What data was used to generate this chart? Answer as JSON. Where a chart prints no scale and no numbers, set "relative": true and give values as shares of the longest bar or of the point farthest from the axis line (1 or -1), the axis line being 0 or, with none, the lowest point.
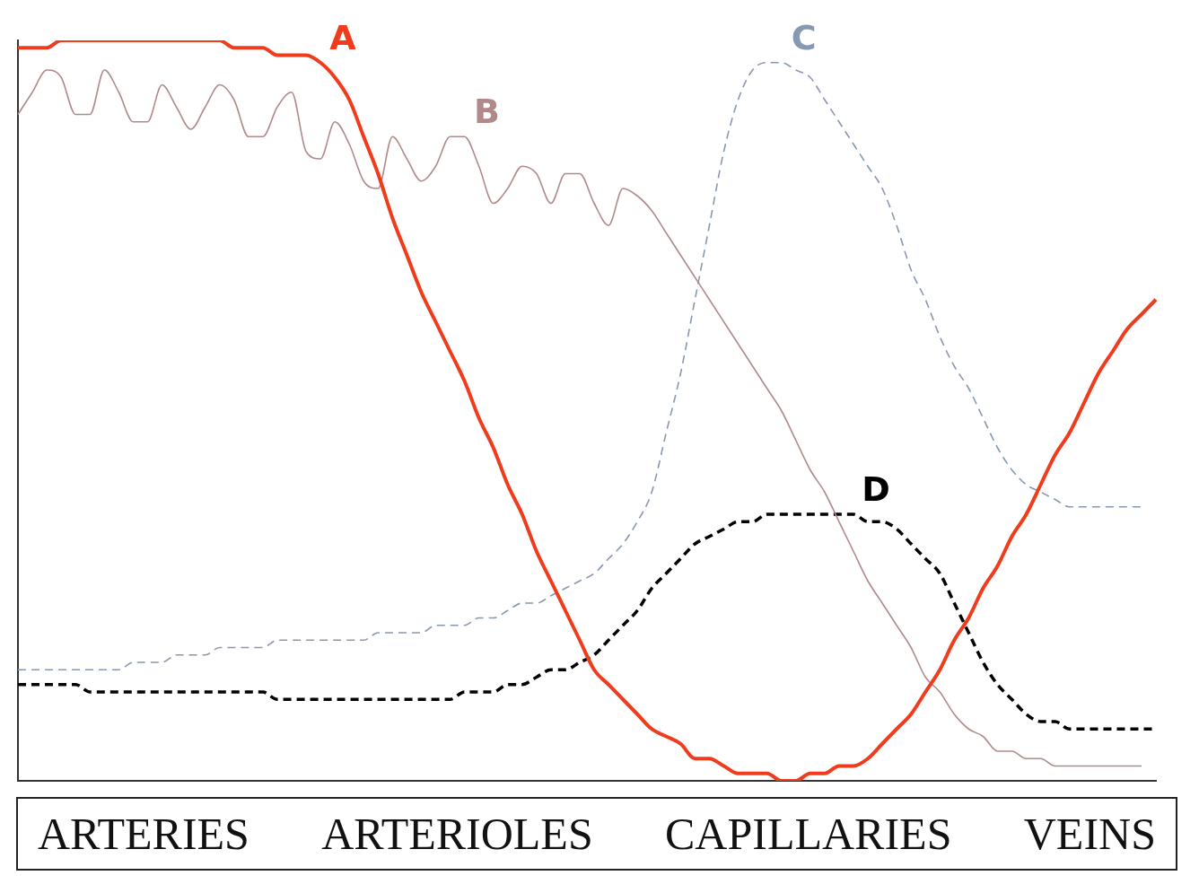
{
  "chart_data": {
    "type": "line",
    "relative": true,
    "legend": false,
    "grid": false,
    "categories": [
      null,
      null,
      null,
      null,
      null,
      null,
      null,
      null,
      null,
      null,
      null,
      null,
      null,
      null,
      null,
      null,
      null,
      null,
      null,
      null,
      null,
      null,
      null,
      null,
      null,
      null,
      null,
      null,
      null,
      null,
      null,
      null,
      null,
      null,
      null,
      null,
      null,
      null,
      null,
      null,
      null,
      null,
      null,
      null,
      null,
      null,
      null,
      null,
      null,
      null,
      null,
      null,
      null,
      null,
      null,
      null,
      null,
      null,
      null,
      null,
      null,
      null,
      null,
      null,
      null,
      null,
      null,
      null,
      null,
      null,
      null,
      null,
      null,
      null,
      null,
      null,
      null,
      null,
      null,
      null
    ],
    "annotations": [
      "ARTERIES",
      "ARTERIOLES",
      "CAPILLARIES",
      "VEINS"
    ],
    "series": [
      {
        "name": "A",
        "color": "#f03c1c",
        "line_style": "solid",
        "values": [
          0.99,
          0.99,
          0.99,
          1.0,
          1.0,
          1.0,
          1.0,
          1.0,
          1.0,
          1.0,
          1.0,
          1.0,
          1.0,
          1.0,
          1.0,
          0.99,
          0.99,
          0.99,
          0.98,
          0.98,
          0.98,
          0.97,
          0.95,
          0.92,
          0.87,
          0.82,
          0.76,
          0.71,
          0.66,
          0.62,
          0.58,
          0.54,
          0.49,
          0.45,
          0.4,
          0.36,
          0.31,
          0.27,
          0.23,
          0.19,
          0.15,
          0.13,
          0.11,
          0.09,
          0.07,
          0.06,
          0.05,
          0.03,
          0.03,
          0.02,
          0.01,
          0.01,
          0.01,
          0.0,
          0.0,
          0.01,
          0.01,
          0.02,
          0.02,
          0.03,
          0.05,
          0.07,
          0.09,
          0.12,
          0.15,
          0.19,
          0.22,
          0.26,
          0.29,
          0.33,
          0.36,
          0.4,
          0.44,
          0.47,
          0.51,
          0.55,
          0.58,
          0.61,
          0.63,
          0.65
        ]
      },
      {
        "name": "B",
        "color": "#b08a8a",
        "line_style": "solid",
        "values": [
          0.9,
          0.93,
          0.96,
          0.95,
          0.9,
          0.9,
          0.96,
          0.93,
          0.89,
          0.89,
          0.94,
          0.91,
          0.88,
          0.91,
          0.94,
          0.92,
          0.87,
          0.87,
          0.91,
          0.93,
          0.85,
          0.84,
          0.89,
          0.86,
          0.81,
          0.8,
          0.87,
          0.84,
          0.81,
          0.83,
          0.87,
          0.87,
          0.83,
          0.78,
          0.8,
          0.83,
          0.82,
          0.78,
          0.82,
          0.82,
          0.78,
          0.75,
          0.8,
          0.79,
          0.77,
          0.74,
          0.71,
          0.68,
          0.65,
          0.62,
          0.59,
          0.56,
          0.53,
          0.5,
          0.46,
          0.42,
          0.39,
          0.35,
          0.31,
          0.27,
          0.24,
          0.21,
          0.18,
          0.14,
          0.12,
          0.09,
          0.07,
          0.06,
          0.04,
          0.04,
          0.03,
          0.03,
          0.02,
          0.02,
          0.02,
          0.02,
          0.02,
          0.02,
          0.02,
          null
        ]
      },
      {
        "name": "C",
        "color": "#8898b0",
        "line_style": "dashed",
        "values": [
          0.15,
          0.15,
          0.15,
          0.15,
          0.15,
          0.15,
          0.15,
          0.15,
          0.16,
          0.16,
          0.16,
          0.17,
          0.17,
          0.17,
          0.18,
          0.18,
          0.18,
          0.18,
          0.19,
          0.19,
          0.19,
          0.19,
          0.19,
          0.19,
          0.19,
          0.2,
          0.2,
          0.2,
          0.2,
          0.21,
          0.21,
          0.21,
          0.22,
          0.22,
          0.23,
          0.24,
          0.24,
          0.25,
          0.26,
          0.27,
          0.28,
          0.3,
          0.32,
          0.35,
          0.39,
          0.47,
          0.55,
          0.65,
          0.75,
          0.85,
          0.92,
          0.96,
          0.97,
          0.97,
          0.96,
          0.95,
          0.92,
          0.89,
          0.86,
          0.83,
          0.8,
          0.75,
          0.69,
          0.65,
          0.6,
          0.56,
          0.53,
          0.49,
          0.45,
          0.42,
          0.4,
          0.39,
          0.38,
          0.37,
          0.37,
          0.37,
          0.37,
          0.37,
          0.37,
          null
        ]
      },
      {
        "name": "D",
        "color": "#000000",
        "line_style": "dashed",
        "values": [
          0.13,
          0.13,
          0.13,
          0.13,
          0.13,
          0.12,
          0.12,
          0.12,
          0.12,
          0.12,
          0.12,
          0.12,
          0.12,
          0.12,
          0.12,
          0.12,
          0.12,
          0.12,
          0.11,
          0.11,
          0.11,
          0.11,
          0.11,
          0.11,
          0.11,
          0.11,
          0.11,
          0.11,
          0.11,
          0.11,
          0.11,
          0.12,
          0.12,
          0.12,
          0.13,
          0.13,
          0.14,
          0.15,
          0.15,
          0.16,
          0.17,
          0.19,
          0.21,
          0.23,
          0.26,
          0.28,
          0.3,
          0.32,
          0.33,
          0.34,
          0.35,
          0.35,
          0.36,
          0.36,
          0.36,
          0.36,
          0.36,
          0.36,
          0.36,
          0.35,
          0.35,
          0.34,
          0.32,
          0.3,
          0.28,
          0.24,
          0.2,
          0.16,
          0.13,
          0.11,
          0.09,
          0.08,
          0.08,
          0.07,
          0.07,
          0.07,
          0.07,
          0.07,
          0.07,
          0.07
        ]
      }
    ]
  }
}
